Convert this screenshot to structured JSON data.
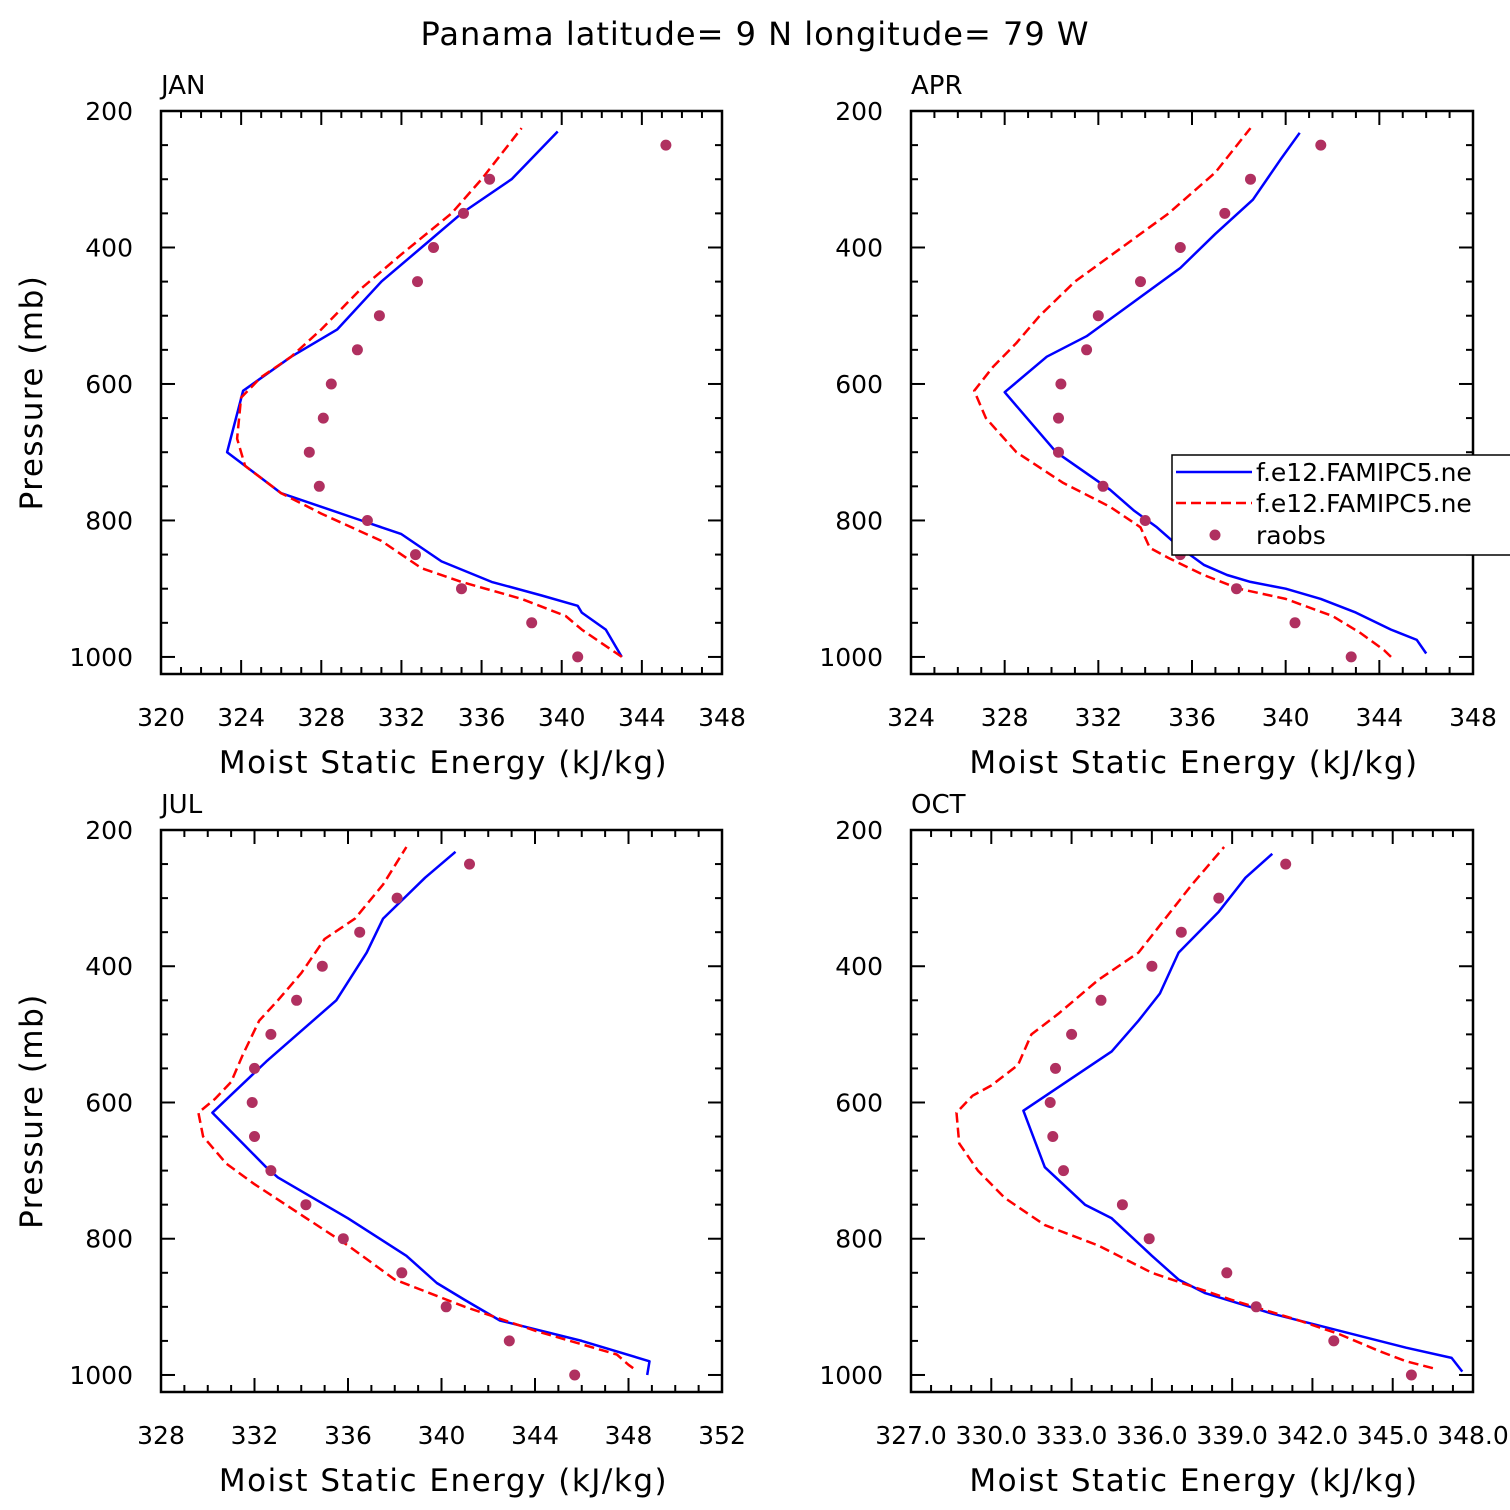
{
  "title": "Panama  latitude= 9 N longitude= 79 W",
  "legend": {
    "entries": [
      "f.e12.FAMIPC5.ne",
      "f.e12.FAMIPC5.ne",
      "raobs"
    ]
  },
  "colors": {
    "model1": "#0000ff",
    "model2": "#ff0000",
    "raobs": "#b03060",
    "axis": "#000000"
  },
  "chart_data": [
    {
      "type": "line",
      "label": "JAN",
      "xlabel": "Moist Static Energy (kJ/kg)",
      "ylabel": "Pressure (mb)",
      "xlim": [
        320,
        348
      ],
      "ylim": [
        1025,
        200
      ],
      "xticks": [
        "320",
        "324",
        "328",
        "332",
        "336",
        "340",
        "344",
        "348"
      ],
      "yticks": [
        "200",
        "400",
        "600",
        "800",
        "1000"
      ],
      "series": [
        {
          "name": "f.e12.FAMIPC5.ne (solid)",
          "x": [
            343.0,
            342.8,
            342.2,
            341.0,
            340.8,
            339.0,
            336.5,
            334.0,
            332.0,
            330.0,
            328.0,
            326.0,
            323.3,
            324.1,
            326.5,
            328.8,
            331.0,
            333.0,
            335.0,
            337.5,
            339.8
          ],
          "y": [
            1000,
            990,
            960,
            935,
            925,
            910,
            890,
            860,
            820,
            800,
            780,
            760,
            700,
            610,
            560,
            520,
            450,
            400,
            350,
            300,
            230
          ]
        },
        {
          "name": "f.e12.FAMIPC5.ne (dashed)",
          "x": [
            343.0,
            342.0,
            341.0,
            340.2,
            338.0,
            335.0,
            333.0,
            331.0,
            328.0,
            326.0,
            324.2,
            323.8,
            324.0,
            325.0,
            326.5,
            328.0,
            330.0,
            332.0,
            334.5,
            336.0,
            338.0
          ],
          "y": [
            1000,
            980,
            960,
            940,
            915,
            890,
            870,
            830,
            790,
            760,
            720,
            680,
            620,
            590,
            560,
            520,
            460,
            410,
            350,
            300,
            225
          ]
        },
        {
          "name": "raobs",
          "x": [
            340.8,
            338.5,
            335.0,
            332.7,
            330.3,
            327.9,
            327.4,
            328.1,
            328.5,
            329.8,
            330.9,
            332.8,
            333.6,
            335.1,
            336.4,
            345.2
          ],
          "y": [
            1000,
            950,
            900,
            850,
            800,
            750,
            700,
            650,
            600,
            550,
            500,
            450,
            400,
            350,
            300,
            250
          ]
        }
      ]
    },
    {
      "type": "line",
      "label": "APR",
      "xlabel": "Moist Static Energy (kJ/kg)",
      "ylabel": "",
      "xlim": [
        324,
        348
      ],
      "ylim": [
        1025,
        200
      ],
      "xticks": [
        "324",
        "328",
        "332",
        "336",
        "340",
        "344",
        "348"
      ],
      "yticks": [
        "200",
        "400",
        "600",
        "800",
        "1000"
      ],
      "series": [
        {
          "name": "f.e12.FAMIPC5.ne (solid)",
          "x": [
            346.0,
            345.6,
            344.5,
            343.0,
            341.5,
            340.0,
            338.5,
            337.5,
            336.5,
            335.5,
            334.5,
            333.5,
            332.5,
            330.2,
            328.0,
            329.8,
            331.5,
            333.5,
            335.5,
            337.0,
            338.6,
            339.8,
            340.6
          ],
          "y": [
            995,
            975,
            960,
            935,
            915,
            900,
            890,
            880,
            865,
            840,
            810,
            785,
            755,
            700,
            612,
            560,
            530,
            480,
            430,
            380,
            330,
            270,
            232
          ]
        },
        {
          "name": "f.e12.FAMIPC5.ne (dashed)",
          "x": [
            344.5,
            344.2,
            343.2,
            342.0,
            340.0,
            338.0,
            336.5,
            335.0,
            334.2,
            333.8,
            332.5,
            330.5,
            328.5,
            327.2,
            326.7,
            327.5,
            328.5,
            329.5,
            331.0,
            333.0,
            335.0,
            337.0,
            338.5
          ],
          "y": [
            1000,
            990,
            965,
            940,
            915,
            900,
            880,
            855,
            840,
            810,
            780,
            745,
            700,
            650,
            610,
            575,
            540,
            500,
            450,
            400,
            350,
            290,
            225
          ]
        },
        {
          "name": "raobs",
          "x": [
            342.8,
            340.4,
            337.9,
            335.5,
            334.0,
            332.2,
            330.3,
            330.3,
            330.4,
            331.5,
            332.0,
            333.8,
            335.5,
            337.4,
            338.5,
            341.5
          ],
          "y": [
            1000,
            950,
            900,
            850,
            800,
            750,
            700,
            650,
            600,
            550,
            500,
            450,
            400,
            350,
            300,
            250
          ]
        }
      ]
    },
    {
      "type": "line",
      "label": "JUL",
      "xlabel": "Moist Static Energy (kJ/kg)",
      "ylabel": "Pressure (mb)",
      "xlim": [
        328,
        352
      ],
      "ylim": [
        1025,
        200
      ],
      "xticks": [
        "328",
        "332",
        "336",
        "340",
        "344",
        "348",
        "352"
      ],
      "yticks": [
        "200",
        "400",
        "600",
        "800",
        "1000"
      ],
      "series": [
        {
          "name": "f.e12.FAMIPC5.ne (solid)",
          "x": [
            348.8,
            348.9,
            346.0,
            342.5,
            341.0,
            339.8,
            338.5,
            336.0,
            333.0,
            332.5,
            330.2,
            332.5,
            335.5,
            336.8,
            337.5,
            339.3,
            340.6
          ],
          "y": [
            1000,
            980,
            950,
            920,
            890,
            865,
            825,
            770,
            710,
            695,
            615,
            540,
            450,
            380,
            330,
            270,
            232
          ]
        },
        {
          "name": "f.e12.FAMIPC5.ne (dashed)",
          "x": [
            348.2,
            348.0,
            347.5,
            346.5,
            344.0,
            341.0,
            338.0,
            336.0,
            334.0,
            332.0,
            330.8,
            329.8,
            329.6,
            330.3,
            331.0,
            331.5,
            332.2,
            333.0,
            334.0,
            335.0,
            336.3,
            337.5,
            338.5
          ],
          "y": [
            990,
            985,
            970,
            960,
            935,
            900,
            860,
            810,
            765,
            720,
            690,
            650,
            615,
            595,
            570,
            530,
            480,
            450,
            410,
            360,
            330,
            280,
            225
          ]
        },
        {
          "name": "raobs",
          "x": [
            345.7,
            342.9,
            340.2,
            338.3,
            335.8,
            334.2,
            332.7,
            332.0,
            331.9,
            332.0,
            332.7,
            333.8,
            334.9,
            336.5,
            338.1,
            341.2
          ],
          "y": [
            1000,
            950,
            900,
            850,
            800,
            750,
            700,
            650,
            600,
            550,
            500,
            450,
            400,
            350,
            300,
            250
          ]
        }
      ]
    },
    {
      "type": "line",
      "label": "OCT",
      "xlabel": "Moist Static Energy (kJ/kg)",
      "ylabel": "",
      "xlim": [
        327,
        348
      ],
      "ylim": [
        1025,
        200
      ],
      "xticks": [
        "327.0",
        "330.0",
        "333.0",
        "336.0",
        "339.0",
        "342.0",
        "345.0",
        "348.0"
      ],
      "yticks": [
        "200",
        "400",
        "600",
        "800",
        "1000"
      ],
      "series": [
        {
          "name": "f.e12.FAMIPC5.ne (solid)",
          "x": [
            347.6,
            347.2,
            345.5,
            343.0,
            340.5,
            338.0,
            337.0,
            336.0,
            334.5,
            333.5,
            332.0,
            331.2,
            334.5,
            335.5,
            336.3,
            337.0,
            338.5,
            339.5,
            340.5
          ],
          "y": [
            995,
            975,
            960,
            935,
            910,
            880,
            860,
            825,
            770,
            750,
            695,
            612,
            525,
            480,
            440,
            380,
            320,
            270,
            235
          ]
        },
        {
          "name": "f.e12.FAMIPC5.ne (dashed)",
          "x": [
            346.5,
            345.5,
            344.5,
            343.0,
            341.5,
            339.0,
            336.0,
            334.0,
            332.0,
            330.5,
            329.5,
            328.8,
            328.7,
            329.3,
            330.0,
            331.0,
            331.5,
            332.5,
            334.0,
            335.5,
            336.5,
            337.5,
            338.7
          ],
          "y": [
            990,
            980,
            965,
            940,
            920,
            890,
            850,
            810,
            780,
            740,
            700,
            660,
            615,
            590,
            575,
            545,
            500,
            470,
            420,
            380,
            330,
            280,
            225
          ]
        },
        {
          "name": "raobs",
          "x": [
            345.7,
            342.8,
            339.9,
            338.8,
            335.9,
            334.9,
            332.7,
            332.3,
            332.2,
            332.4,
            333.0,
            334.1,
            336.0,
            337.1,
            338.5,
            341.0
          ],
          "y": [
            1000,
            950,
            900,
            850,
            800,
            750,
            700,
            650,
            600,
            550,
            500,
            450,
            400,
            350,
            300,
            250
          ]
        }
      ]
    }
  ]
}
